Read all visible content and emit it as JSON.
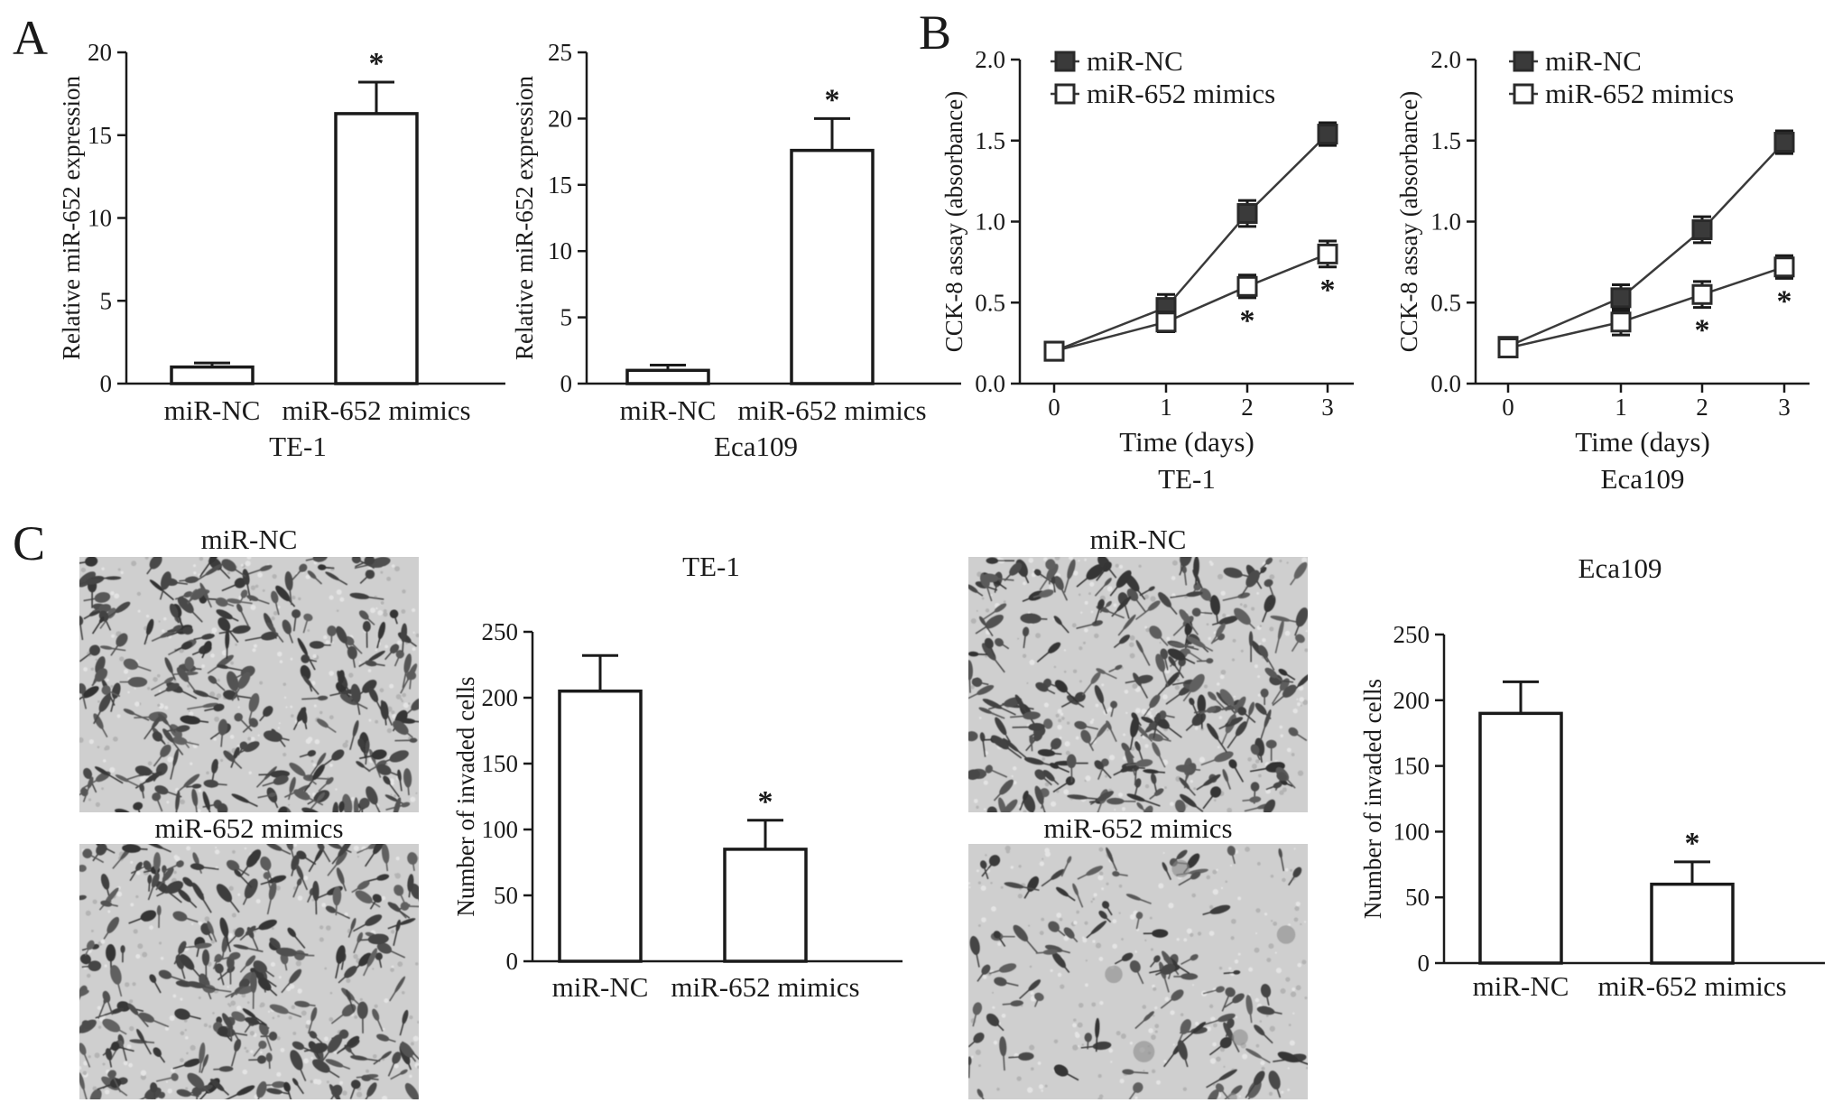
{
  "panels": {
    "A": "A",
    "B": "B",
    "C": "C"
  },
  "micrographs": [
    {
      "label": "miR-NC",
      "texture": "dense-cells"
    },
    {
      "label": "miR-652 mimics",
      "texture": "dense-cells"
    },
    {
      "label": "miR-NC",
      "texture": "dense-cells"
    },
    {
      "label": "miR-652 mimics",
      "texture": "sparse-cells"
    }
  ],
  "chart_data": [
    {
      "type": "bar",
      "title": "",
      "xlabel": "TE-1",
      "ylabel": "Relative miR-652 expression",
      "categories": [
        "miR-NC",
        "miR-652 mimics"
      ],
      "values": [
        1.0,
        16.3
      ],
      "errors": [
        0.25,
        1.9
      ],
      "significance": [
        "",
        "*"
      ],
      "ylim": [
        0,
        20
      ],
      "yticks": [
        0,
        5,
        10,
        15,
        20
      ]
    },
    {
      "type": "bar",
      "title": "",
      "xlabel": "Eca109",
      "ylabel": "Relative miR-652 expression",
      "categories": [
        "miR-NC",
        "miR-652 mimics"
      ],
      "values": [
        1.0,
        17.6
      ],
      "errors": [
        0.4,
        2.4
      ],
      "significance": [
        "",
        "*"
      ],
      "ylim": [
        0,
        25
      ],
      "yticks": [
        0,
        5,
        10,
        15,
        20,
        25
      ]
    },
    {
      "type": "line",
      "title": "",
      "xlabel": "Time (days)",
      "sublabel": "TE-1",
      "ylabel": "CCK-8 assay (absorbance)",
      "x": [
        0,
        1,
        2,
        3
      ],
      "xticks": [
        0,
        1,
        2,
        3
      ],
      "ylim": [
        0.0,
        2.0
      ],
      "yticks": [
        "0.0",
        "0.5",
        "1.0",
        "1.5",
        "2.0"
      ],
      "legend_position": "top-left",
      "series": [
        {
          "name": "miR-NC",
          "marker": "filled-square",
          "values": [
            0.2,
            0.47,
            1.05,
            1.54
          ],
          "errors": [
            0.04,
            0.08,
            0.08,
            0.07
          ],
          "significance": [
            "",
            "",
            "",
            ""
          ]
        },
        {
          "name": "miR-652 mimics",
          "marker": "open-square",
          "values": [
            0.2,
            0.38,
            0.6,
            0.8
          ],
          "errors": [
            0.04,
            0.06,
            0.07,
            0.08
          ],
          "significance": [
            "",
            "",
            "*",
            "*"
          ]
        }
      ]
    },
    {
      "type": "line",
      "title": "",
      "xlabel": "Time (days)",
      "sublabel": "Eca109",
      "ylabel": "CCK-8 assay (absorbance)",
      "x": [
        0,
        1,
        2,
        3
      ],
      "xticks": [
        0,
        1,
        2,
        3
      ],
      "ylim": [
        0.0,
        2.0
      ],
      "yticks": [
        "0.0",
        "0.5",
        "1.0",
        "1.5",
        "2.0"
      ],
      "legend_position": "top-left",
      "series": [
        {
          "name": "miR-NC",
          "marker": "filled-square",
          "values": [
            0.23,
            0.53,
            0.95,
            1.49
          ],
          "errors": [
            0.04,
            0.08,
            0.08,
            0.07
          ],
          "significance": [
            "",
            "",
            "",
            ""
          ]
        },
        {
          "name": "miR-652 mimics",
          "marker": "open-square",
          "values": [
            0.22,
            0.38,
            0.55,
            0.72
          ],
          "errors": [
            0.04,
            0.08,
            0.08,
            0.07
          ],
          "significance": [
            "",
            "",
            "*",
            "*"
          ]
        }
      ]
    },
    {
      "type": "bar",
      "title": "TE-1",
      "xlabel": "",
      "ylabel": "Number of invaded cells",
      "categories": [
        "miR-NC",
        "miR-652 mimics"
      ],
      "values": [
        205,
        85
      ],
      "errors": [
        27,
        22
      ],
      "significance": [
        "",
        "*"
      ],
      "ylim": [
        0,
        250
      ],
      "yticks": [
        0,
        50,
        100,
        150,
        200,
        250
      ]
    },
    {
      "type": "bar",
      "title": "Eca109",
      "xlabel": "",
      "ylabel": "Number of invaded cells",
      "categories": [
        "miR-NC",
        "miR-652 mimics"
      ],
      "values": [
        190,
        60
      ],
      "errors": [
        24,
        17
      ],
      "significance": [
        "",
        "*"
      ],
      "ylim": [
        0,
        250
      ],
      "yticks": [
        0,
        50,
        100,
        150,
        200,
        250
      ]
    }
  ]
}
